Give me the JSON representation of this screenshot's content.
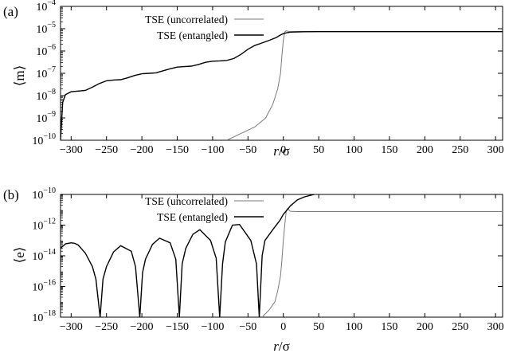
{
  "chart_data": [
    {
      "type": "line",
      "panel_label": "(a)",
      "xlabel": "r/σ",
      "ylabel": "⟨m⟩",
      "y_scale": "log",
      "xlim": [
        -315,
        310
      ],
      "ylim": [
        1e-10,
        0.0001
      ],
      "x_ticks": [
        -300,
        -250,
        -200,
        -150,
        -100,
        -50,
        0,
        50,
        100,
        150,
        200,
        250,
        300
      ],
      "y_ticks": [
        {
          "base": "10",
          "exp": "-10",
          "value": 1e-10
        },
        {
          "base": "10",
          "exp": "-9",
          "value": 1e-09
        },
        {
          "base": "10",
          "exp": "-8",
          "value": 1e-08
        },
        {
          "base": "10",
          "exp": "-7",
          "value": 1e-07
        },
        {
          "base": "10",
          "exp": "-6",
          "value": 1e-06
        },
        {
          "base": "10",
          "exp": "-5",
          "value": 1e-05
        },
        {
          "base": "10",
          "exp": "-4",
          "value": 0.0001
        }
      ],
      "legend_position": "top-left",
      "series": [
        {
          "name": "TSE (uncorrelated)",
          "color": "#7a7a7a",
          "x": [
            -80,
            -60,
            -40,
            -25,
            -15,
            -8,
            -4,
            -2,
            0,
            2,
            4,
            8,
            20,
            50,
            100,
            200,
            310
          ],
          "y": [
            1e-10,
            2e-10,
            4e-10,
            1e-09,
            4e-09,
            2e-08,
            1e-07,
            6e-07,
            3e-06,
            7e-06,
            8e-06,
            7.5e-06,
            7.4e-06,
            7.5e-06,
            7.5e-06,
            7.5e-06,
            7.5e-06
          ]
        },
        {
          "name": "TSE (entangled)",
          "color": "#000000",
          "x": [
            -315,
            -312,
            -308,
            -300,
            -290,
            -280,
            -270,
            -260,
            -250,
            -240,
            -230,
            -220,
            -210,
            -200,
            -190,
            -180,
            -170,
            -160,
            -150,
            -140,
            -130,
            -120,
            -110,
            -100,
            -90,
            -80,
            -70,
            -60,
            -50,
            -40,
            -30,
            -20,
            -10,
            -5,
            0,
            5,
            10,
            20,
            30,
            50,
            100,
            200,
            310
          ],
          "y": [
            1e-10,
            5e-09,
            1.1e-08,
            1.5e-08,
            1.6e-08,
            1.7e-08,
            2.4e-08,
            3.5e-08,
            4.6e-08,
            5e-08,
            5.2e-08,
            6.3e-08,
            8e-08,
            9.5e-08,
            1e-07,
            1.05e-07,
            1.3e-07,
            1.6e-07,
            1.9e-07,
            2e-07,
            2.1e-07,
            2.5e-07,
            3.1e-07,
            3.5e-07,
            3.6e-07,
            3.8e-07,
            4.6e-07,
            7e-07,
            1.2e-06,
            1.8e-06,
            2.3e-06,
            3e-06,
            4e-06,
            5e-06,
            6e-06,
            6.6e-06,
            7e-06,
            7.2e-06,
            7.3e-06,
            7.4e-06,
            7.4e-06,
            7.4e-06,
            7.4e-06
          ]
        }
      ]
    },
    {
      "type": "line",
      "panel_label": "(b)",
      "xlabel": "r/σ",
      "ylabel": "⟨e⟩",
      "y_scale": "log",
      "xlim": [
        -315,
        310
      ],
      "ylim": [
        1e-18,
        1e-10
      ],
      "x_ticks": [
        -300,
        -250,
        -200,
        -150,
        -100,
        -50,
        0,
        50,
        100,
        150,
        200,
        250,
        300
      ],
      "y_ticks": [
        {
          "base": "10",
          "exp": "-18",
          "value": 1e-18
        },
        {
          "base": "10",
          "exp": "-16",
          "value": 1e-16
        },
        {
          "base": "10",
          "exp": "-14",
          "value": 1e-14
        },
        {
          "base": "10",
          "exp": "-12",
          "value": 1e-12
        },
        {
          "base": "10",
          "exp": "-10",
          "value": 1e-10
        }
      ],
      "legend_position": "top-left",
      "series": [
        {
          "name": "TSE (uncorrelated)",
          "color": "#7a7a7a",
          "x": [
            -30,
            -20,
            -12,
            -8,
            -4,
            -2,
            0,
            2,
            4,
            6,
            10,
            20,
            50,
            100,
            200,
            310
          ],
          "y": [
            1e-18,
            3e-18,
            1e-17,
            5e-17,
            5e-16,
            5e-15,
            1e-13,
            1e-12,
            8e-12,
            1.2e-11,
            8e-12,
            7.6e-12,
            7.6e-12,
            7.6e-12,
            7.6e-12,
            7.6e-12
          ]
        },
        {
          "name": "TSE (entangled)",
          "color": "#000000",
          "dips_at": [
            -259,
            -203,
            -147,
            -90,
            -34
          ],
          "x": [
            -315,
            -308,
            -300,
            -295,
            -290,
            -280,
            -270,
            -265,
            -259,
            -255,
            -250,
            -240,
            -230,
            -215,
            -209,
            -203,
            -199,
            -195,
            -185,
            -175,
            -160,
            -152,
            -147,
            -143,
            -138,
            -128,
            -118,
            -103,
            -95,
            -90,
            -86,
            -82,
            -72,
            -62,
            -46,
            -38,
            -34,
            -30,
            -26,
            -15,
            -5,
            0,
            10,
            20,
            30,
            50,
            70,
            100,
            200,
            310
          ],
          "y": [
            3e-14,
            6e-14,
            7e-14,
            6.5e-14,
            5e-14,
            1.5e-14,
            2e-15,
            3e-16,
            1e-18,
            3e-16,
            2e-15,
            1.8e-14,
            4.5e-14,
            2e-14,
            2e-15,
            1e-18,
            8e-16,
            6e-15,
            5.5e-14,
            1.4e-13,
            7e-14,
            6e-15,
            1e-18,
            3e-15,
            3e-14,
            2.5e-13,
            5e-13,
            1e-13,
            7e-15,
            1e-18,
            3e-15,
            8e-14,
            1e-12,
            1.1e-12,
            1e-13,
            3e-15,
            1e-18,
            1e-14,
            1e-13,
            5e-13,
            2e-12,
            5e-12,
            1.8e-11,
            4.5e-11,
            7e-11,
            1.2e-10,
            1.3e-10,
            1.2e-10,
            1.2e-10,
            1.2e-10
          ]
        }
      ]
    }
  ]
}
